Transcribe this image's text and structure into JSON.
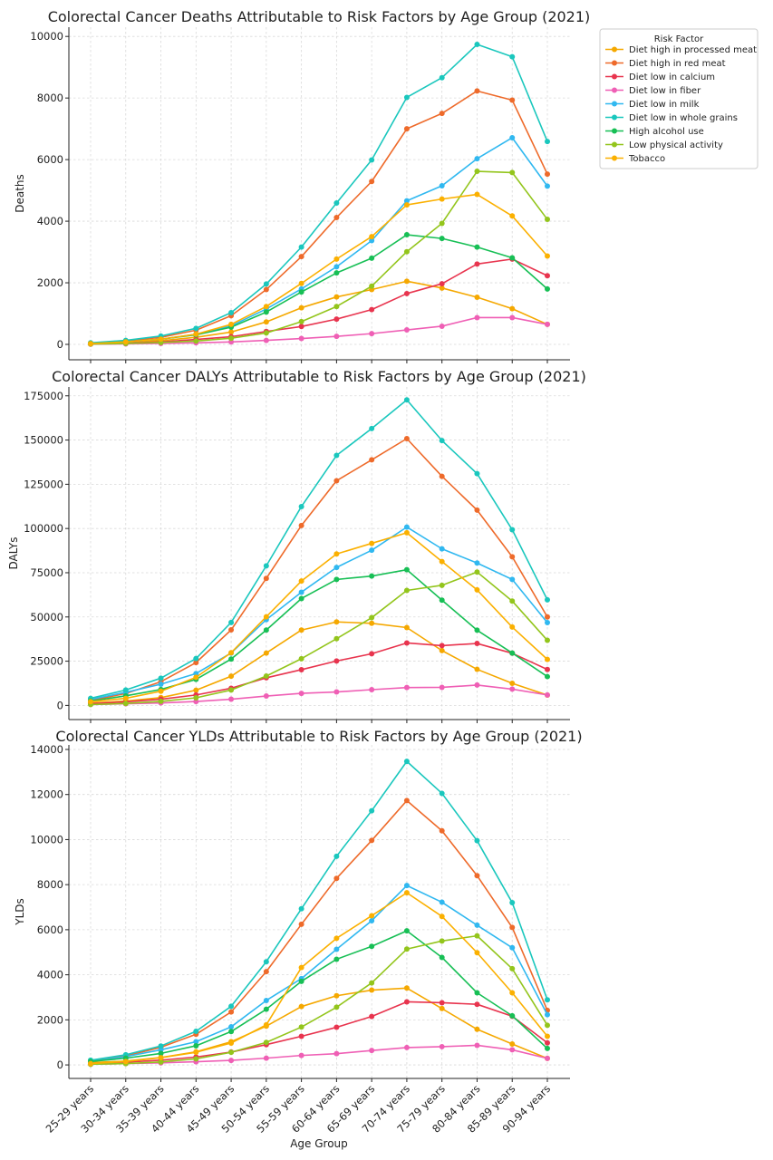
{
  "legend": {
    "title": "Risk Factor"
  },
  "xlabel": "Age Group",
  "categories": [
    "25-29 years",
    "30-34 years",
    "35-39 years",
    "40-44 years",
    "45-49 years",
    "50-54 years",
    "55-59 years",
    "60-64 years",
    "65-69 years",
    "70-74 years",
    "75-79 years",
    "80-84 years",
    "85-89 years",
    "90-94 years"
  ],
  "series_styles": [
    {
      "name": "Diet high in processed meat",
      "color": "#f5a800"
    },
    {
      "name": "Diet high in red meat",
      "color": "#ee6a2a"
    },
    {
      "name": "Diet low in calcium",
      "color": "#e8344e"
    },
    {
      "name": "Diet low in fiber",
      "color": "#ef5fb5"
    },
    {
      "name": "Diet low in milk",
      "color": "#30b8f0"
    },
    {
      "name": "Diet low in whole grains",
      "color": "#1ac7bd"
    },
    {
      "name": "High alcohol use",
      "color": "#17bf55"
    },
    {
      "name": "Low physical activity",
      "color": "#93c51c"
    },
    {
      "name": "Tobacco",
      "color": "#fbb000"
    }
  ],
  "chart_data": [
    {
      "type": "line",
      "title": "Colorectal Cancer Deaths Attributable to Risk Factors by Age Group (2021)",
      "xlabel": "",
      "ylabel": "Deaths",
      "ylim": [
        -500,
        10300
      ],
      "yticks": [
        0,
        2000,
        4000,
        6000,
        8000,
        10000
      ],
      "yticklabels": [
        "0",
        "2000",
        "4000",
        "6000",
        "8000",
        "10000"
      ],
      "series": [
        {
          "name": "Diet high in processed meat",
          "values": [
            20,
            60,
            120,
            230,
            400,
            730,
            1190,
            1540,
            1780,
            2050,
            1830,
            1530,
            1160,
            650
          ]
        },
        {
          "name": "Diet high in red meat",
          "values": [
            40,
            110,
            230,
            460,
            930,
            1780,
            2850,
            4120,
            5290,
            7000,
            7500,
            8230,
            7930,
            5530
          ]
        },
        {
          "name": "Diet low in calcium",
          "values": [
            15,
            40,
            80,
            160,
            250,
            420,
            580,
            820,
            1130,
            1650,
            1970,
            2610,
            2770,
            2230
          ]
        },
        {
          "name": "Diet low in fiber",
          "values": [
            5,
            15,
            30,
            50,
            80,
            130,
            190,
            260,
            350,
            470,
            590,
            870,
            870,
            650
          ]
        },
        {
          "name": "Diet low in milk",
          "values": [
            30,
            80,
            170,
            330,
            600,
            1150,
            1800,
            2520,
            3370,
            4660,
            5150,
            6030,
            6710,
            5140
          ]
        },
        {
          "name": "Diet low in whole grains",
          "values": [
            50,
            130,
            270,
            520,
            1030,
            1960,
            3160,
            4590,
            5990,
            8020,
            8660,
            9740,
            9340,
            6590
          ]
        },
        {
          "name": "High alcohol use",
          "values": [
            30,
            80,
            170,
            310,
            560,
            1050,
            1700,
            2320,
            2800,
            3560,
            3440,
            3160,
            2810,
            1800
          ]
        },
        {
          "name": "Low physical activity",
          "values": [
            10,
            30,
            60,
            110,
            200,
            370,
            740,
            1230,
            1890,
            3010,
            3930,
            5620,
            5580,
            4060
          ]
        },
        {
          "name": "Tobacco",
          "values": [
            25,
            80,
            170,
            330,
            650,
            1230,
            1980,
            2770,
            3500,
            4530,
            4720,
            4870,
            4170,
            2870
          ]
        }
      ]
    },
    {
      "type": "line",
      "title": "Colorectal Cancer DALYs Attributable to Risk Factors by Age Group (2021)",
      "xlabel": "",
      "ylabel": "DALYs",
      "ylim": [
        -8000,
        180000
      ],
      "yticks": [
        0,
        25000,
        50000,
        75000,
        100000,
        125000,
        150000,
        175000
      ],
      "yticklabels": [
        "0",
        "25000",
        "50000",
        "75000",
        "100000",
        "125000",
        "150000",
        "175000"
      ],
      "series": [
        {
          "name": "Diet high in processed meat",
          "values": [
            1300,
            2500,
            4400,
            8600,
            16500,
            29600,
            42600,
            47200,
            46400,
            44000,
            31000,
            20400,
            12500,
            5800
          ]
        },
        {
          "name": "Diet high in red meat",
          "values": [
            2800,
            6700,
            13400,
            24200,
            42700,
            71800,
            101700,
            127000,
            138800,
            150800,
            129500,
            110400,
            84000,
            50000
          ]
        },
        {
          "name": "Diet low in calcium",
          "values": [
            1000,
            2000,
            3500,
            5900,
            9700,
            15600,
            20200,
            25100,
            29200,
            35300,
            33800,
            35000,
            29500,
            20300
          ]
        },
        {
          "name": "Diet low in fiber",
          "values": [
            500,
            900,
            1400,
            2200,
            3500,
            5300,
            6800,
            7600,
            8900,
            10100,
            10200,
            11500,
            9200,
            5900
          ]
        },
        {
          "name": "Diet low in milk",
          "values": [
            3400,
            7400,
            12000,
            18000,
            29600,
            48500,
            64000,
            78000,
            87700,
            100800,
            88500,
            80500,
            71200,
            46800
          ]
        },
        {
          "name": "Diet low in whole grains",
          "values": [
            4000,
            8700,
            15400,
            26500,
            46900,
            78900,
            112400,
            141300,
            156500,
            172700,
            149700,
            131000,
            99300,
            59700
          ]
        },
        {
          "name": "High alcohol use",
          "values": [
            2500,
            5400,
            9000,
            14700,
            26200,
            42600,
            60400,
            71200,
            73100,
            76700,
            59500,
            42500,
            29600,
            16300
          ]
        },
        {
          "name": "Low physical activity",
          "values": [
            500,
            1100,
            2300,
            4300,
            8700,
            16600,
            26400,
            37700,
            49600,
            65000,
            67900,
            75400,
            59000,
            36800
          ]
        },
        {
          "name": "Tobacco",
          "values": [
            2100,
            4000,
            8000,
            15900,
            29800,
            50100,
            70300,
            85600,
            91600,
            97600,
            81300,
            65300,
            44300,
            26000
          ]
        }
      ]
    },
    {
      "type": "line",
      "title": "Colorectal Cancer YLDs Attributable to Risk Factors by Age Group (2021)",
      "xlabel": "Age Group",
      "ylabel": "YLDs",
      "ylim": [
        -600,
        14200
      ],
      "yticks": [
        0,
        2000,
        4000,
        6000,
        8000,
        10000,
        12000,
        14000
      ],
      "yticklabels": [
        "0",
        "2000",
        "4000",
        "6000",
        "8000",
        "10000",
        "12000",
        "14000"
      ],
      "series": [
        {
          "name": "Diet high in processed meat",
          "values": [
            100,
            170,
            330,
            580,
            1030,
            1720,
            2590,
            3070,
            3320,
            3410,
            2500,
            1580,
            930,
            290
          ]
        },
        {
          "name": "Diet high in red meat",
          "values": [
            190,
            400,
            780,
            1360,
            2350,
            4140,
            6240,
            8280,
            9960,
            11730,
            10390,
            8400,
            6100,
            2420
          ]
        },
        {
          "name": "Diet low in calcium",
          "values": [
            60,
            120,
            210,
            350,
            570,
            900,
            1270,
            1670,
            2150,
            2800,
            2760,
            2690,
            2160,
            980
          ]
        },
        {
          "name": "Diet low in fiber",
          "values": [
            30,
            60,
            90,
            140,
            200,
            300,
            420,
            500,
            640,
            770,
            810,
            870,
            670,
            290
          ]
        },
        {
          "name": "Diet low in milk",
          "values": [
            150,
            370,
            670,
            1030,
            1690,
            2860,
            3830,
            5130,
            6400,
            7960,
            7220,
            6200,
            5200,
            2230
          ]
        },
        {
          "name": "Diet low in whole grains",
          "values": [
            210,
            450,
            840,
            1490,
            2600,
            4580,
            6930,
            9260,
            11280,
            13470,
            12050,
            9950,
            7200,
            2890
          ]
        },
        {
          "name": "High alcohol use",
          "values": [
            150,
            300,
            510,
            850,
            1480,
            2470,
            3710,
            4690,
            5260,
            5950,
            4770,
            3200,
            2180,
            730
          ]
        },
        {
          "name": "Low physical activity",
          "values": [
            30,
            60,
            130,
            270,
            560,
            1000,
            1680,
            2560,
            3640,
            5140,
            5500,
            5730,
            4270,
            1760
          ]
        },
        {
          "name": "Tobacco",
          "values": [
            60,
            150,
            320,
            560,
            970,
            1780,
            4320,
            5620,
            6620,
            7640,
            6590,
            4980,
            3200,
            1270
          ]
        }
      ]
    }
  ]
}
